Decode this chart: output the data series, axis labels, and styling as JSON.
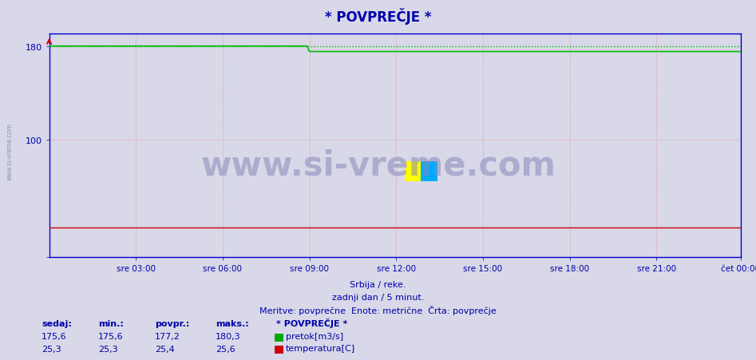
{
  "title": "* POVPREČJE *",
  "bg_color": "#d8d8e8",
  "plot_bg_color": "#d8d8e8",
  "grid_color": "#cc9999",
  "y_label_color": "#0000aa",
  "x_label_color": "#0000aa",
  "title_color": "#0000aa",
  "ymin": 0,
  "ymax": 191,
  "xtick_labels": [
    "sre 03:00",
    "sre 06:00",
    "sre 09:00",
    "sre 12:00",
    "sre 15:00",
    "sre 18:00",
    "sre 21:00",
    "čet 00:00"
  ],
  "n_points": 288,
  "flow_color": "#00bb00",
  "temp_color": "#cc0000",
  "watermark_color": "#8888bb",
  "subtitle1": "Srbija / reke.",
  "subtitle2": "zadnji dan / 5 minut.",
  "subtitle3": "Meritve: povprečne  Enote: metrične  Črta: povprečje",
  "legend_title": "* POVPREČJE *",
  "legend_items": [
    "pretok[m3/s]",
    "temperatura[C]"
  ],
  "stat_labels": [
    "sedaj:",
    "min.:",
    "povpr.:",
    "maks.:"
  ],
  "stat_flow": [
    "175,6",
    "175,6",
    "177,2",
    "180,3"
  ],
  "stat_temp": [
    "25,3",
    "25,3",
    "25,4",
    "25,6"
  ],
  "flow_value_high": 180.3,
  "flow_value_low": 175.6,
  "flow_drop_index": 108,
  "temp_value": 25.3,
  "axis_color": "#0000cc",
  "spine_color": "#0000cc",
  "left_watermark": "www.si-vreme.com"
}
